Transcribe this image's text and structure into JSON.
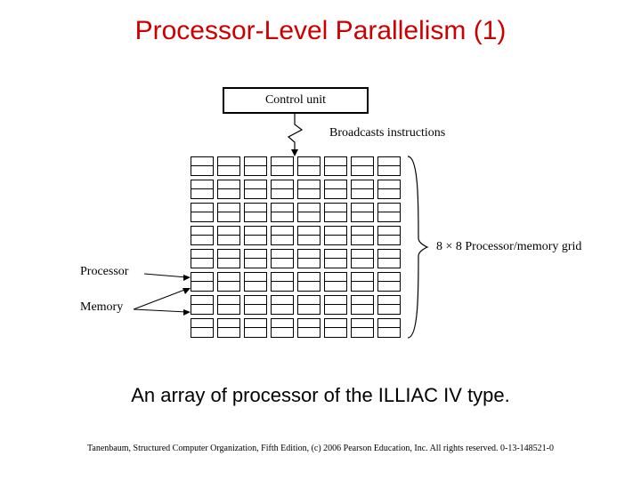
{
  "title": "Processor-Level Parallelism (1)",
  "diagram": {
    "control_unit": "Control unit",
    "broadcast": "Broadcasts instructions",
    "processor": "Processor",
    "memory": "Memory",
    "grid_label": "8 × 8 Processor/memory grid",
    "grid_rows": 8,
    "grid_cols": 8
  },
  "caption": "An array of processor of the ILLIAC IV type.",
  "footer": "Tanenbaum, Structured Computer Organization, Fifth Edition, (c) 2006 Pearson Education, Inc. All rights reserved. 0-13-148521-0",
  "colors": {
    "title": "#cc0000",
    "text": "#000000",
    "line": "#000000",
    "background": "#ffffff"
  }
}
